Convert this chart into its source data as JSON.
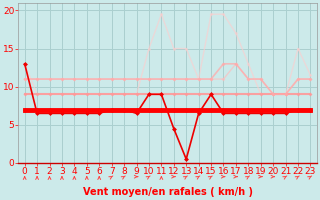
{
  "xlabel": "Vent moyen/en rafales ( km/h )",
  "xlim": [
    -0.5,
    23.5
  ],
  "ylim": [
    0,
    21
  ],
  "yticks": [
    0,
    5,
    10,
    15,
    20
  ],
  "xticks": [
    0,
    1,
    2,
    3,
    4,
    5,
    6,
    7,
    8,
    9,
    10,
    11,
    12,
    13,
    14,
    15,
    16,
    17,
    18,
    19,
    20,
    21,
    22,
    23
  ],
  "bg_color": "#cceaea",
  "grid_color": "#aacfcf",
  "series": [
    {
      "x": [
        0,
        1,
        2,
        3,
        4,
        5,
        6,
        7,
        8,
        9,
        10,
        11,
        12,
        13,
        14,
        15,
        16,
        17,
        18,
        19,
        20,
        21,
        22,
        23
      ],
      "y": [
        7,
        7,
        7,
        7,
        7,
        7,
        7,
        7,
        7,
        7,
        7,
        7,
        7,
        7,
        7,
        7,
        7,
        7,
        7,
        7,
        7,
        7,
        7,
        7
      ],
      "color": "#ff0000",
      "linewidth": 3.5,
      "marker": "D",
      "markersize": 2.5,
      "alpha": 1.0,
      "zorder": 5
    },
    {
      "x": [
        0,
        1,
        2,
        3,
        4,
        5,
        6,
        7,
        8,
        9,
        10,
        11,
        12,
        13,
        14,
        15,
        16,
        17,
        18,
        19,
        20,
        21,
        22,
        23
      ],
      "y": [
        13,
        6.5,
        6.5,
        6.5,
        6.5,
        6.5,
        6.5,
        7,
        7,
        6.5,
        9,
        9,
        4.5,
        0.5,
        6.5,
        9,
        6.5,
        6.5,
        6.5,
        6.5,
        6.5,
        6.5,
        7,
        7
      ],
      "color": "#ee0000",
      "linewidth": 1.2,
      "marker": "D",
      "markersize": 2.5,
      "alpha": 1.0,
      "zorder": 4
    },
    {
      "x": [
        0,
        1,
        2,
        3,
        4,
        5,
        6,
        7,
        8,
        9,
        10,
        11,
        12,
        13,
        14,
        15,
        16,
        17,
        18,
        19,
        20,
        21,
        22,
        23
      ],
      "y": [
        9,
        9,
        9,
        9,
        9,
        9,
        9,
        9,
        9,
        9,
        9,
        9,
        9,
        9,
        9,
        9,
        9,
        9,
        9,
        9,
        9,
        9,
        9,
        9
      ],
      "color": "#ff9999",
      "linewidth": 1.5,
      "marker": "D",
      "markersize": 2.0,
      "alpha": 0.9,
      "zorder": 3
    },
    {
      "x": [
        0,
        1,
        2,
        3,
        4,
        5,
        6,
        7,
        8,
        9,
        10,
        11,
        12,
        13,
        14,
        15,
        16,
        17,
        18,
        19,
        20,
        21,
        22,
        23
      ],
      "y": [
        11,
        11,
        11,
        11,
        11,
        11,
        11,
        11,
        11,
        11,
        11,
        11,
        11,
        11,
        11,
        11,
        13,
        13,
        11,
        11,
        9,
        9,
        11,
        11
      ],
      "color": "#ffaaaa",
      "linewidth": 1.2,
      "marker": "D",
      "markersize": 2.0,
      "alpha": 0.75,
      "zorder": 3
    },
    {
      "x": [
        0,
        1,
        2,
        3,
        4,
        5,
        6,
        7,
        8,
        9,
        10,
        11,
        12,
        13,
        14,
        15,
        16,
        17,
        18,
        19,
        20,
        21,
        22,
        23
      ],
      "y": [
        11,
        11,
        11,
        11,
        11,
        11,
        11,
        11,
        11,
        11,
        11,
        11,
        11,
        11,
        11,
        11,
        11,
        13,
        11,
        11,
        9,
        9,
        11,
        11
      ],
      "color": "#ffbbbb",
      "linewidth": 1.0,
      "marker": "D",
      "markersize": 2.0,
      "alpha": 0.65,
      "zorder": 2
    },
    {
      "x": [
        0,
        1,
        2,
        3,
        4,
        5,
        6,
        7,
        8,
        9,
        10,
        11,
        12,
        13,
        14,
        15,
        16,
        17,
        18,
        19,
        20,
        21,
        22,
        23
      ],
      "y": [
        13,
        9,
        9,
        9,
        9,
        9,
        9,
        9,
        9,
        9,
        15,
        19.5,
        15,
        15,
        11,
        19.5,
        19.5,
        17,
        13,
        9,
        9,
        9,
        15,
        11.5
      ],
      "color": "#ffcccc",
      "linewidth": 1.0,
      "marker": "D",
      "markersize": 1.8,
      "alpha": 0.6,
      "zorder": 2
    }
  ],
  "arrow_angles": [
    0,
    0,
    0,
    0,
    0,
    0,
    0,
    45,
    45,
    90,
    45,
    0,
    90,
    45,
    45,
    45,
    90,
    90,
    45,
    90,
    90,
    45,
    45,
    45
  ],
  "arrow_color": "#ff4444",
  "xlabel_color": "#ff0000",
  "xlabel_fontsize": 7,
  "tick_color": "#ff0000",
  "tick_fontsize": 6.5
}
